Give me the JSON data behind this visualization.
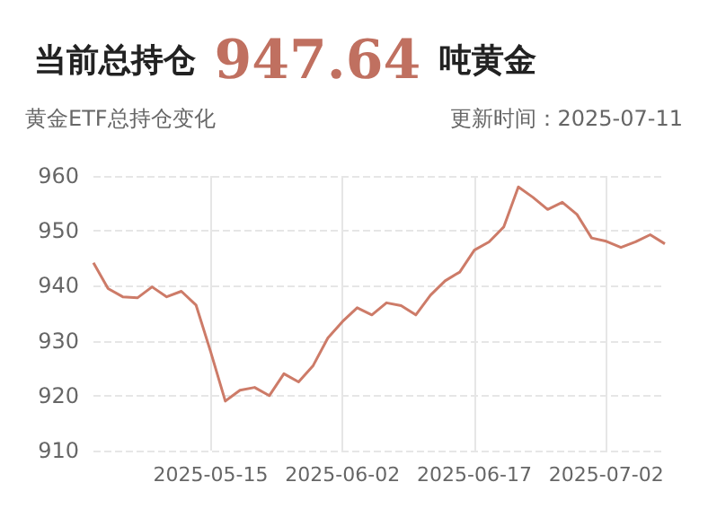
{
  "chart_data": {
    "type": "line",
    "title": "当前总持仓 947.64 吨黄金",
    "subtitle": "黄金ETF总持仓变化",
    "annotations": [
      "更新时间：2025-07-11"
    ],
    "categories": [
      null,
      null,
      null,
      null,
      null,
      null,
      null,
      null,
      "2025-05-15",
      null,
      null,
      null,
      null,
      null,
      null,
      null,
      null,
      "2025-06-02",
      null,
      null,
      null,
      null,
      null,
      null,
      null,
      null,
      "2025-06-17",
      null,
      null,
      null,
      null,
      null,
      null,
      null,
      null,
      "2025-07-02",
      null,
      null,
      null,
      null
    ],
    "series": [
      {
        "color": "#cd7b68",
        "values": [
          944.2,
          939.5,
          938,
          937.8,
          939.8,
          938,
          939,
          936.5,
          928,
          919,
          921,
          921.5,
          920,
          924,
          922.5,
          925.5,
          930.5,
          933.5,
          936,
          934.7,
          936.9,
          936.4,
          934.7,
          938.3,
          940.9,
          942.5,
          946.5,
          948,
          950.7,
          958,
          956.1,
          953.9,
          955.2,
          953,
          948.7,
          948.1,
          947,
          948,
          949.3,
          947.64
        ]
      }
    ],
    "ylim": [
      910,
      960
    ],
    "yticks": [
      910,
      920,
      930,
      940,
      950,
      960
    ],
    "grid": true,
    "marker": "none",
    "line_style": "solid"
  }
}
